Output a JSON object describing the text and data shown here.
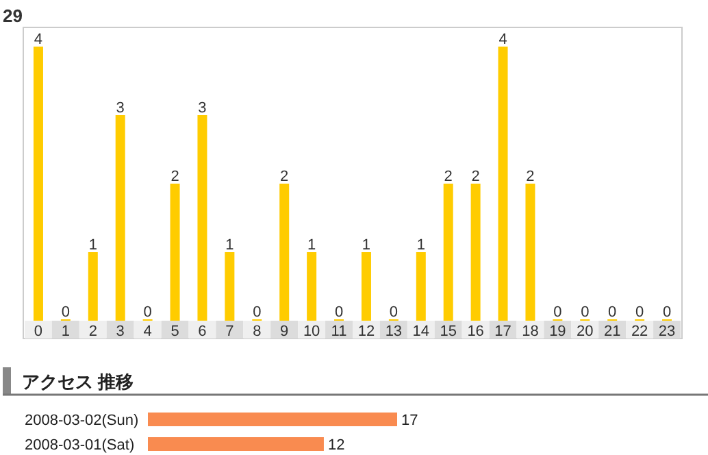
{
  "chart_data": [
    {
      "type": "bar",
      "title": "29",
      "categories": [
        "0",
        "1",
        "2",
        "3",
        "4",
        "5",
        "6",
        "7",
        "8",
        "9",
        "10",
        "11",
        "12",
        "13",
        "14",
        "15",
        "16",
        "17",
        "18",
        "19",
        "20",
        "21",
        "22",
        "23"
      ],
      "values": [
        4,
        0,
        1,
        3,
        0,
        2,
        3,
        1,
        0,
        2,
        1,
        0,
        1,
        0,
        1,
        2,
        2,
        4,
        2,
        0,
        0,
        0,
        0,
        0
      ],
      "color": "#ffcc00",
      "data_labels": true
    },
    {
      "type": "bar",
      "orientation": "horizontal",
      "title": "アクセス 推移",
      "categories": [
        "2008-03-02(Sun)",
        "2008-03-01(Sat)"
      ],
      "values": [
        17,
        12
      ],
      "color": "#f98b50",
      "data_labels": true
    }
  ]
}
